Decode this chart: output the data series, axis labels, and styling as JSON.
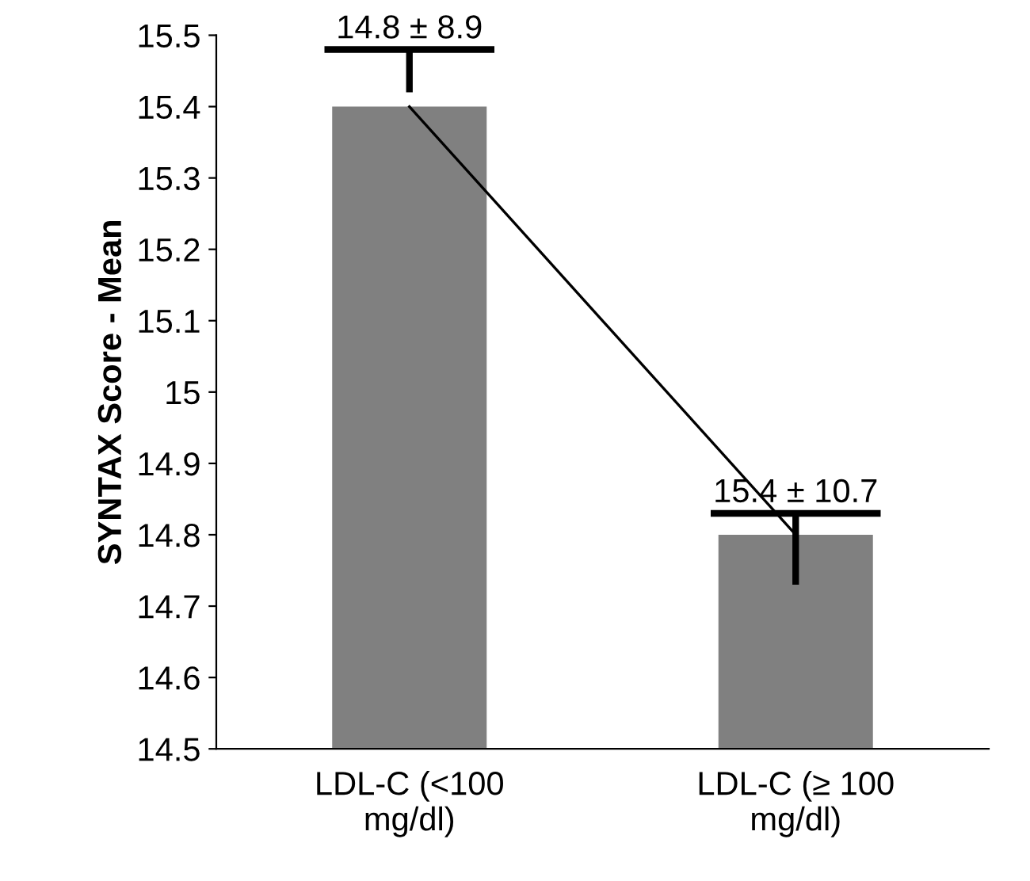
{
  "chart_data": {
    "type": "bar",
    "ylabel": "SYNTAX Score - Mean",
    "categories": [
      "LDL-C (<100\nmg/dl)",
      "LDL-C (≥ 100\nmg/dl)"
    ],
    "series": [
      {
        "color": "#808080",
        "values": [
          15.4,
          14.8
        ],
        "errors": [
          [
            15.42,
            15.48
          ],
          [
            14.73,
            14.83
          ]
        ]
      },
      {
        "type": "line",
        "color": "#000000",
        "values": [
          15.4,
          14.8
        ]
      }
    ],
    "ylim": [
      14.5,
      15.5
    ],
    "yticks": [
      14.5,
      14.6,
      14.7,
      14.8,
      14.9,
      {
        "value": 15.0,
        "label": "15"
      },
      15.1,
      15.2,
      15.3,
      15.4,
      15.5
    ],
    "annotations": [
      {
        "text": "14.8 ± 8.9",
        "x": "LDL-C (<100\nmg/dl)",
        "y": 15.48
      },
      {
        "text": "15.4 ± 10.7",
        "x": "LDL-C (≥ 100\nmg/dl)",
        "y": 14.83
      }
    ],
    "grid": false,
    "legend": false
  }
}
